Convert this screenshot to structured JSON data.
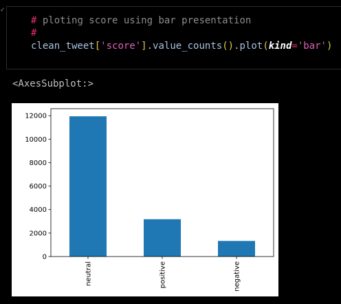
{
  "code": {
    "line1_hash": "#",
    "line1_comment": " ploting score using bar presentation",
    "line2_hash": "#",
    "line3": {
      "var": "clean_tweet",
      "open_bracket": "[",
      "key": "'score'",
      "close_bracket": "]",
      "dot1": ".",
      "method1": "value_counts",
      "paren1": "()",
      "dot2": ".",
      "method2": "plot",
      "open_paren": "(",
      "kwarg": "kind",
      "equals": "=",
      "kwval": "'bar'",
      "close_paren": ")"
    }
  },
  "output": {
    "repr": "<AxesSubplot:>"
  },
  "colors": {
    "bar": "#1f77b4",
    "background": "#000000"
  },
  "chart_data": {
    "type": "bar",
    "categories": [
      "neutral",
      "positive",
      "negative"
    ],
    "values": [
      11950,
      3180,
      1330
    ],
    "title": "",
    "xlabel": "",
    "ylabel": "",
    "ylim": [
      0,
      12600
    ],
    "yticks": [
      0,
      2000,
      4000,
      6000,
      8000,
      10000,
      12000
    ],
    "grid": false,
    "legend": "none",
    "xtick_rotation": 90
  }
}
